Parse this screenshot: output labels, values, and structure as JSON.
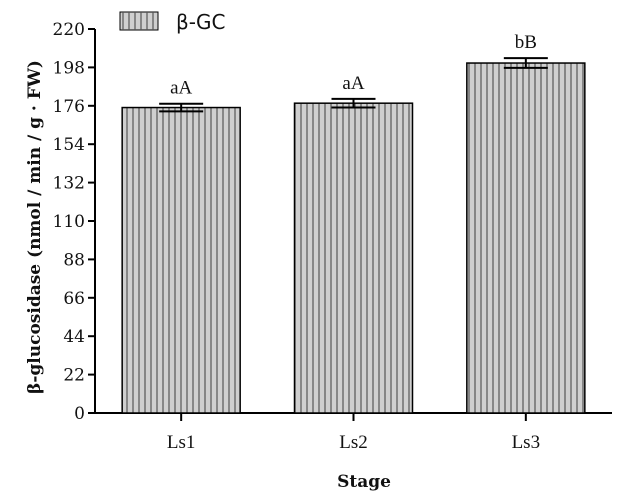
{
  "chart_data": {
    "type": "bar",
    "categories": [
      "Ls1",
      "Ls2",
      "Ls3"
    ],
    "series": [
      {
        "name": "β-GC",
        "values": [
          175,
          177.5,
          200.5
        ],
        "errors": [
          2.2,
          2.5,
          2.8
        ]
      }
    ],
    "significance_labels": [
      "aA",
      "aA",
      "bB"
    ],
    "xlabel": "Stage",
    "ylabel": "β-glucosidase (nmol / min / g · FW)",
    "ylim": [
      0,
      220
    ],
    "yticks": [
      0,
      22,
      44,
      66,
      88,
      110,
      132,
      154,
      176,
      198,
      220
    ],
    "grid": false,
    "legend_position": "top-left",
    "bar_fill": "#cfcfcf",
    "bar_hatch": "vertical-lines",
    "line_color": "#000000"
  }
}
